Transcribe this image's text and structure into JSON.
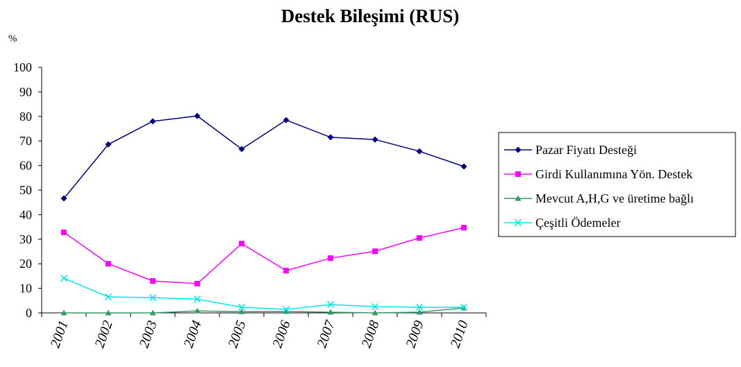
{
  "chart_data": {
    "type": "line",
    "title": "Destek Bileşimi (RUS)",
    "y_label": "%",
    "categories": [
      "2001",
      "2002",
      "2003",
      "2004",
      "2005",
      "2006",
      "2007",
      "2008",
      "2009",
      "2010"
    ],
    "series": [
      {
        "name": "Pazar Fiyatı Desteği",
        "color": "#000080",
        "marker": "diamond",
        "values": [
          46.6,
          68.6,
          78,
          80.2,
          66.7,
          78.5,
          71.5,
          70.6,
          65.8,
          59.6
        ]
      },
      {
        "name": "Girdi Kullanımına Yön. Destek",
        "color": "#ff00ff",
        "marker": "square",
        "values": [
          32.8,
          20,
          13,
          11.9,
          28.2,
          17.2,
          22.3,
          25.1,
          30.5,
          34.7
        ]
      },
      {
        "name": "Mevcut A,H,G ve üretime bağlı",
        "color": "#339966",
        "marker": "triangle",
        "values": [
          0,
          0,
          0,
          0.8,
          0.5,
          0.6,
          0.3,
          0,
          0.3,
          2
        ]
      },
      {
        "name": "Çeşitli Ödemeler",
        "color": "#00e5e5",
        "marker": "x",
        "values": [
          14.1,
          6.5,
          6.2,
          5.6,
          2.3,
          1.4,
          3.4,
          2.5,
          2.3,
          2.3
        ]
      }
    ],
    "ylim": [
      0,
      100
    ],
    "yticks": [
      0,
      10,
      20,
      30,
      40,
      50,
      60,
      70,
      80,
      90,
      100
    ],
    "legend": "right"
  }
}
